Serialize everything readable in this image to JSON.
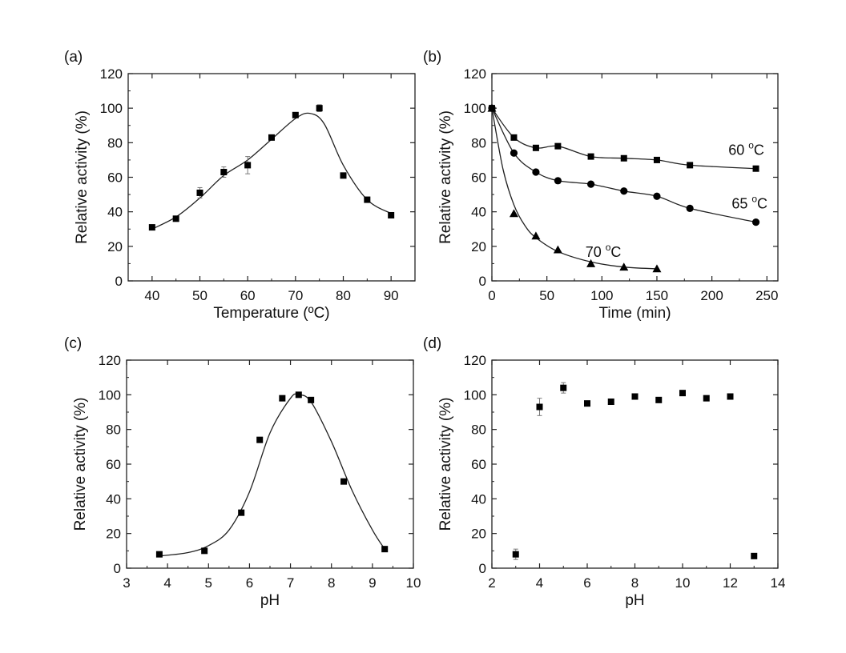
{
  "chart_data": [
    {
      "panel": "(a)",
      "type": "scatter",
      "xlabel": "Temperature (ºC)",
      "ylabel": "Relative activity (%)",
      "xlim": [
        35,
        95
      ],
      "ylim": [
        0,
        120
      ],
      "xticks": [
        40,
        50,
        60,
        70,
        80,
        90
      ],
      "yticks": [
        0,
        20,
        40,
        60,
        80,
        100,
        120
      ],
      "marker": "square",
      "points": [
        {
          "x": 40,
          "y": 31,
          "err": 0
        },
        {
          "x": 45,
          "y": 36,
          "err": 0
        },
        {
          "x": 50,
          "y": 51,
          "err": 3
        },
        {
          "x": 55,
          "y": 63,
          "err": 3
        },
        {
          "x": 60,
          "y": 67,
          "err": 5
        },
        {
          "x": 65,
          "y": 83,
          "err": 0
        },
        {
          "x": 70,
          "y": 96,
          "err": 0
        },
        {
          "x": 75,
          "y": 100,
          "err": 2
        },
        {
          "x": 80,
          "y": 61,
          "err": 0
        },
        {
          "x": 85,
          "y": 47,
          "err": 0
        },
        {
          "x": 90,
          "y": 38,
          "err": 0
        }
      ],
      "fit": [
        [
          40,
          30
        ],
        [
          45,
          37
        ],
        [
          50,
          48
        ],
        [
          55,
          61
        ],
        [
          60,
          70
        ],
        [
          65,
          82
        ],
        [
          70,
          94
        ],
        [
          73,
          97
        ],
        [
          76,
          91
        ],
        [
          80,
          67
        ],
        [
          85,
          47
        ],
        [
          90,
          39
        ]
      ]
    },
    {
      "panel": "(b)",
      "type": "line",
      "xlabel": "Time (min)",
      "ylabel": "Relative activity (%)",
      "xlim": [
        0,
        260
      ],
      "ylim": [
        0,
        120
      ],
      "xticks": [
        0,
        50,
        100,
        150,
        200,
        250
      ],
      "yticks": [
        0,
        20,
        40,
        60,
        80,
        100,
        120
      ],
      "series": [
        {
          "name": "60 °C",
          "label_text": "60 ",
          "label_sup": "o",
          "label_unit": "C",
          "label_at": [
            215,
            73
          ],
          "marker": "square",
          "x": [
            0,
            20,
            40,
            60,
            90,
            120,
            150,
            180,
            240
          ],
          "y": [
            100,
            83,
            77,
            78,
            72,
            71,
            70,
            67,
            65
          ]
        },
        {
          "name": "65 °C",
          "label_text": "65 ",
          "label_sup": "o",
          "label_unit": "C",
          "label_at": [
            218,
            42
          ],
          "marker": "circle",
          "x": [
            0,
            20,
            40,
            60,
            90,
            120,
            150,
            180,
            240
          ],
          "y": [
            100,
            74,
            63,
            58,
            56,
            52,
            49,
            42,
            34
          ]
        },
        {
          "name": "70 °C",
          "label_text": "70 ",
          "label_sup": "o",
          "label_unit": "C",
          "label_at": [
            85,
            14
          ],
          "marker": "triangle",
          "x": [
            0,
            20,
            40,
            60,
            90,
            120,
            150
          ],
          "y": [
            100,
            39,
            26,
            18,
            10,
            8,
            7
          ]
        }
      ],
      "fit_70": [
        [
          0,
          100
        ],
        [
          10,
          65
        ],
        [
          20,
          44
        ],
        [
          30,
          32
        ],
        [
          40,
          25
        ],
        [
          60,
          17
        ],
        [
          90,
          11
        ],
        [
          120,
          8
        ],
        [
          150,
          7
        ]
      ]
    },
    {
      "panel": "(c)",
      "type": "scatter",
      "xlabel": "pH",
      "ylabel": "Relative activity (%)",
      "xlim": [
        3,
        10
      ],
      "ylim": [
        0,
        120
      ],
      "xticks": [
        3,
        4,
        5,
        6,
        7,
        8,
        9,
        10
      ],
      "yticks": [
        0,
        20,
        40,
        60,
        80,
        100,
        120
      ],
      "marker": "square",
      "points": [
        {
          "x": 3.8,
          "y": 8,
          "err": 0
        },
        {
          "x": 4.9,
          "y": 10,
          "err": 0
        },
        {
          "x": 5.8,
          "y": 32,
          "err": 0
        },
        {
          "x": 6.25,
          "y": 74,
          "err": 0
        },
        {
          "x": 6.8,
          "y": 98,
          "err": 0
        },
        {
          "x": 7.2,
          "y": 100,
          "err": 0
        },
        {
          "x": 7.5,
          "y": 97,
          "err": 0
        },
        {
          "x": 8.3,
          "y": 50,
          "err": 0
        },
        {
          "x": 9.3,
          "y": 11,
          "err": 0
        }
      ],
      "fit": [
        [
          3.8,
          7
        ],
        [
          4.5,
          9
        ],
        [
          5.0,
          13
        ],
        [
          5.5,
          22
        ],
        [
          6.0,
          44
        ],
        [
          6.5,
          78
        ],
        [
          7.0,
          98
        ],
        [
          7.2,
          100
        ],
        [
          7.5,
          96
        ],
        [
          8.0,
          73
        ],
        [
          8.5,
          45
        ],
        [
          9.0,
          22
        ],
        [
          9.3,
          11
        ]
      ]
    },
    {
      "panel": "(d)",
      "type": "scatter",
      "xlabel": "pH",
      "ylabel": "Relative activity (%)",
      "xlim": [
        2,
        14
      ],
      "ylim": [
        0,
        120
      ],
      "xticks": [
        2,
        4,
        6,
        8,
        10,
        12,
        14
      ],
      "yticks": [
        0,
        20,
        40,
        60,
        80,
        100,
        120
      ],
      "marker": "square",
      "points": [
        {
          "x": 3,
          "y": 8,
          "err": 3
        },
        {
          "x": 4,
          "y": 93,
          "err": 5
        },
        {
          "x": 5,
          "y": 104,
          "err": 3
        },
        {
          "x": 6,
          "y": 95,
          "err": 0
        },
        {
          "x": 7,
          "y": 96,
          "err": 0
        },
        {
          "x": 8,
          "y": 99,
          "err": 0
        },
        {
          "x": 9,
          "y": 97,
          "err": 0
        },
        {
          "x": 10,
          "y": 101,
          "err": 0
        },
        {
          "x": 11,
          "y": 98,
          "err": 0
        },
        {
          "x": 12,
          "y": 99,
          "err": 0
        },
        {
          "x": 13,
          "y": 7,
          "err": 0
        }
      ]
    }
  ]
}
